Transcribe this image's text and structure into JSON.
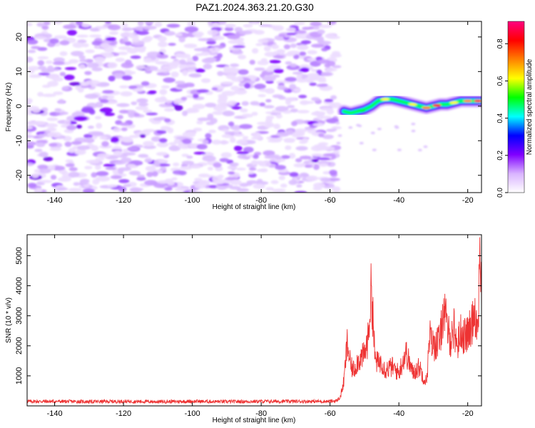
{
  "title": "PAZ1.2024.363.21.20.G30",
  "chart_data": [
    {
      "type": "heatmap",
      "title": "PAZ1.2024.363.21.20.G30",
      "xlabel": "Height of straight line (km)",
      "ylabel": "Frequency (Hz)",
      "xlim": [
        -148,
        -16
      ],
      "ylim": [
        -25,
        24.5
      ],
      "xticks": [
        -140,
        -120,
        -100,
        -80,
        -60,
        -40,
        -20
      ],
      "xtick_labels": [
        "-140",
        "-120",
        "-100",
        "-80",
        "-60",
        "-40",
        "-20"
      ],
      "yticks": [
        -20,
        -10,
        0,
        10,
        20
      ],
      "ytick_labels": [
        "-20",
        "-10",
        "0",
        "10",
        "20"
      ],
      "colorbar": {
        "label": "Normalized spectral amplitude",
        "range": [
          0,
          0.92
        ],
        "ticks": [
          0.0,
          0.2,
          0.4,
          0.6,
          0.8
        ],
        "tick_labels": [
          "0.0",
          "0.2",
          "0.4",
          "0.6",
          "0.8"
        ],
        "colormap": [
          "#ffffff",
          "#d9b3ff",
          "#8000ff",
          "#0000ff",
          "#00ffff",
          "#00ff00",
          "#ffff00",
          "#ff8000",
          "#ff0000",
          "#ff0080"
        ]
      },
      "noise_region": {
        "x_range": [
          -148,
          -58
        ],
        "f_range": [
          -25,
          24.5
        ],
        "amplitude_range": [
          0.0,
          0.15
        ]
      },
      "signal_ridge": [
        {
          "x": -56,
          "f": -1.5
        },
        {
          "x": -54,
          "f": -2
        },
        {
          "x": -52,
          "f": -1.5
        },
        {
          "x": -50,
          "f": -1
        },
        {
          "x": -48,
          "f": 0
        },
        {
          "x": -46,
          "f": 1.5
        },
        {
          "x": -44,
          "f": 2
        },
        {
          "x": -42,
          "f": 2
        },
        {
          "x": -40,
          "f": 1.5
        },
        {
          "x": -38,
          "f": 1
        },
        {
          "x": -36,
          "f": 0.5
        },
        {
          "x": -34,
          "f": 0
        },
        {
          "x": -32,
          "f": -0.5
        },
        {
          "x": -30,
          "f": 0
        },
        {
          "x": -28,
          "f": 0.5
        },
        {
          "x": -26,
          "f": 0.5
        },
        {
          "x": -24,
          "f": 1
        },
        {
          "x": -22,
          "f": 1.5
        },
        {
          "x": -20,
          "f": 1.5
        },
        {
          "x": -18,
          "f": 1.5
        },
        {
          "x": -16,
          "f": 1.5
        }
      ]
    },
    {
      "type": "line",
      "xlabel": "Height of straight line (km)",
      "ylabel": "SNR (10 * v/v)",
      "xlim": [
        -148,
        -16
      ],
      "ylim": [
        0,
        5700
      ],
      "xticks": [
        -140,
        -120,
        -100,
        -80,
        -60,
        -40,
        -20
      ],
      "xtick_labels": [
        "-140",
        "-120",
        "-100",
        "-80",
        "-60",
        "-40",
        "-20"
      ],
      "yticks": [
        1000,
        2000,
        3000,
        4000,
        5000
      ],
      "ytick_labels": [
        "1000",
        "2000",
        "3000",
        "4000",
        "5000"
      ],
      "color": "#ee3333",
      "x": [
        -148,
        -140,
        -130,
        -120,
        -110,
        -100,
        -90,
        -80,
        -70,
        -60,
        -58,
        -57,
        -56,
        -55,
        -54,
        -53,
        -52,
        -50,
        -49,
        -48,
        -47.5,
        -47,
        -46,
        -45,
        -44,
        -42,
        -40,
        -38,
        -36,
        -35,
        -34,
        -33,
        -32,
        -31,
        -30,
        -28,
        -27,
        -26,
        -25,
        -24,
        -23,
        -22,
        -21,
        -20,
        -19,
        -18,
        -17,
        -16.5,
        -16
      ],
      "y": [
        150,
        150,
        140,
        150,
        140,
        150,
        140,
        150,
        150,
        150,
        170,
        300,
        800,
        2100,
        1300,
        1200,
        1500,
        1700,
        2200,
        3900,
        3000,
        1600,
        1400,
        1500,
        1200,
        1300,
        1100,
        1800,
        1100,
        1200,
        1300,
        1000,
        800,
        2300,
        2000,
        2200,
        3300,
        2600,
        2200,
        2600,
        2000,
        2500,
        2300,
        2400,
        2600,
        3300,
        2400,
        5700,
        3600
      ]
    }
  ]
}
